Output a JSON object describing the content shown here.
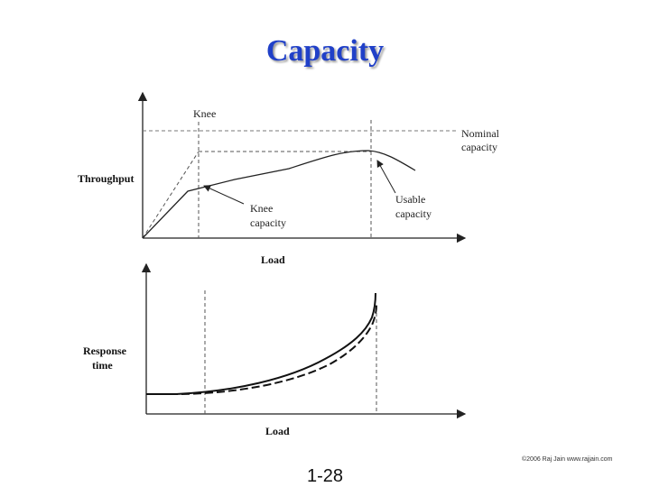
{
  "slide": {
    "title": "Capacity",
    "copyright": "©2006 Raj Jain www.rajjain.com",
    "page_number": "1-28"
  },
  "throughput_plot": {
    "y_label": "Throughput",
    "x_label": "Load",
    "knee_label": "Knee",
    "nominal_capacity_label": [
      "Nominal",
      "capacity"
    ],
    "knee_capacity_label": [
      "Knee",
      "capacity"
    ],
    "usable_capacity_label": [
      "Usable",
      "capacity"
    ]
  },
  "response_plot": {
    "y_label": [
      "Response",
      "time"
    ],
    "x_label": "Load"
  }
}
